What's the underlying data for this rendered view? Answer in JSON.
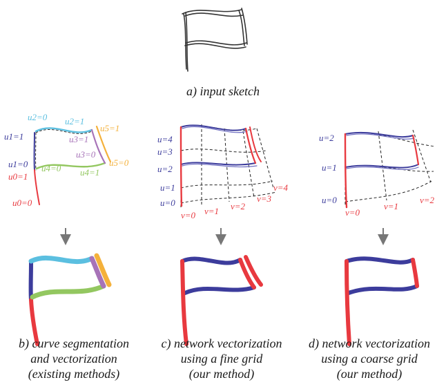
{
  "colors": {
    "red": "#e8393f",
    "blue": "#3c3c9c",
    "cyan": "#5bbfe0",
    "green": "#93c760",
    "purple": "#a773b8",
    "orange": "#f4b13b",
    "sketch": "#333333",
    "arrow": "#777777"
  },
  "captions": {
    "a": "a) input sketch",
    "b": [
      "b) curve segmentation",
      "and vectorization",
      "(existing methods)"
    ],
    "c": [
      "c) network vectorization",
      "using a fine grid",
      "(our method)"
    ],
    "d": [
      "d) network vectorization",
      "using a coarse grid",
      "(our method)"
    ]
  },
  "panel_b": {
    "labels": [
      "u2=0",
      "u2=1",
      "u5=1",
      "u1=1",
      "u3=1",
      "u3=0",
      "u1=0",
      "u4=0",
      "u4=1",
      "u5=0",
      "u0=1",
      "u0=0"
    ]
  },
  "panel_c": {
    "u_labels": [
      "u=4",
      "u=3",
      "u=2",
      "u=1",
      "u=0"
    ],
    "v_labels": [
      "v=0",
      "v=1",
      "v=2",
      "v=3",
      "v=4"
    ]
  },
  "panel_d": {
    "u_labels": [
      "u=2",
      "u=1",
      "u=0"
    ],
    "v_labels": [
      "v=0",
      "v=1",
      "v=2"
    ]
  }
}
